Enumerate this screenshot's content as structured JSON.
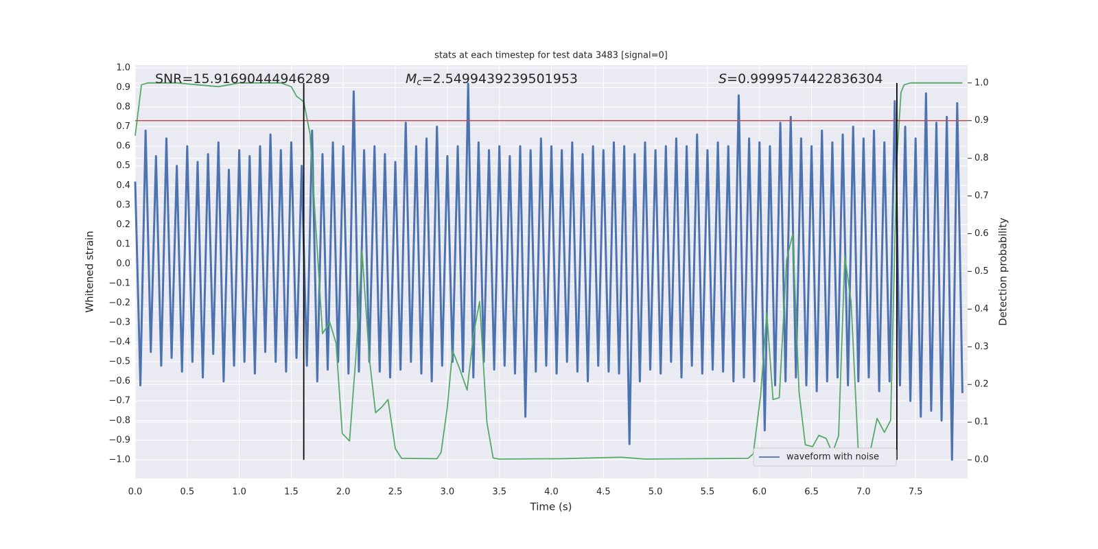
{
  "chart_data": {
    "type": "line",
    "title": "stats at each timestep for test data 3483 [signal=0]",
    "xlabel": "Time (s)",
    "ylabel": "Whitened strain",
    "y2label": "Detection probability",
    "annotations": [
      {
        "text": "SNR=15.91690444946289"
      },
      {
        "symbol": "M",
        "subscript": "c",
        "text": "=2.5499439239501953"
      },
      {
        "symbol": "S",
        "text": "=0.9999574422836304"
      }
    ],
    "xlim": [
      0,
      8.0
    ],
    "ylim": [
      -1.095,
      1.014
    ],
    "y2lim": [
      -0.049,
      1.047
    ],
    "grid": true,
    "legend": "lower right",
    "xticks": [
      {
        "value": 0,
        "label": "0.0"
      },
      0.5,
      {
        "value": 1,
        "label": "1.0"
      },
      1.5,
      {
        "value": 2,
        "label": "2.0"
      },
      2.5,
      {
        "value": 3,
        "label": "3.0"
      },
      3.5,
      {
        "value": 4,
        "label": "4.0"
      },
      4.5,
      {
        "value": 5,
        "label": "5.0"
      },
      5.5,
      {
        "value": 6,
        "label": "6.0"
      },
      6.5,
      {
        "value": 7,
        "label": "7.0"
      },
      7.5
    ],
    "yticks": [
      {
        "value": 1,
        "label": "1.0"
      },
      0.9,
      0.8,
      0.7,
      0.6,
      0.5,
      0.4,
      0.3,
      0.2,
      0.1,
      {
        "value": 0,
        "label": "0.0"
      },
      {
        "value": -0.1,
        "label": "−0.1"
      },
      {
        "value": -0.2,
        "label": "−0.2"
      },
      {
        "value": -0.3,
        "label": "−0.3"
      },
      {
        "value": -0.4,
        "label": "−0.4"
      },
      {
        "value": -0.5,
        "label": "−0.5"
      },
      {
        "value": -0.6,
        "label": "−0.6"
      },
      {
        "value": -0.7,
        "label": "−0.7"
      },
      {
        "value": -0.8,
        "label": "−0.8"
      },
      {
        "value": -0.9,
        "label": "−0.9"
      },
      {
        "value": -1,
        "label": "−1.0"
      }
    ],
    "y2ticks": [
      {
        "value": 0,
        "label": "0.0"
      },
      0.1,
      0.2,
      0.3,
      0.4,
      0.5,
      0.6,
      0.7,
      0.8,
      0.9,
      {
        "value": 1,
        "label": "1.0"
      }
    ],
    "threshold": {
      "value": 0.9,
      "axis": "y2",
      "color": "#c44e52"
    },
    "vlines": {
      "x": [
        1.62,
        7.32
      ],
      "color": "#000000"
    },
    "series": [
      {
        "name": "waveform with noise",
        "color": "#4c72b0",
        "axis": "y",
        "x": [
          0,
          0.05,
          0.1,
          0.15,
          0.2,
          0.25,
          0.3,
          0.35,
          0.4,
          0.45,
          0.5,
          0.55,
          0.6,
          0.65,
          0.7,
          0.75,
          0.8,
          0.85,
          0.9,
          0.95,
          1,
          1.05,
          1.1,
          1.15,
          1.2,
          1.25,
          1.3,
          1.35,
          1.4,
          1.45,
          1.5,
          1.55,
          1.6,
          1.65,
          1.7,
          1.75,
          1.8,
          1.85,
          1.9,
          1.95,
          2,
          2.05,
          2.1,
          2.15,
          2.2,
          2.25,
          2.3,
          2.35,
          2.4,
          2.45,
          2.5,
          2.55,
          2.6,
          2.65,
          2.7,
          2.75,
          2.8,
          2.85,
          2.9,
          2.95,
          3,
          3.05,
          3.1,
          3.15,
          3.2,
          3.25,
          3.3,
          3.35,
          3.4,
          3.45,
          3.5,
          3.55,
          3.6,
          3.65,
          3.7,
          3.75,
          3.8,
          3.85,
          3.9,
          3.95,
          4,
          4.05,
          4.1,
          4.15,
          4.2,
          4.25,
          4.3,
          4.35,
          4.4,
          4.45,
          4.5,
          4.55,
          4.6,
          4.65,
          4.7,
          4.75,
          4.8,
          4.85,
          4.9,
          4.95,
          5,
          5.05,
          5.1,
          5.15,
          5.2,
          5.25,
          5.3,
          5.35,
          5.4,
          5.45,
          5.5,
          5.55,
          5.6,
          5.65,
          5.7,
          5.75,
          5.8,
          5.85,
          5.9,
          5.95,
          6,
          6.05,
          6.1,
          6.15,
          6.2,
          6.25,
          6.3,
          6.35,
          6.4,
          6.45,
          6.5,
          6.55,
          6.6,
          6.65,
          6.7,
          6.75,
          6.8,
          6.85,
          6.9,
          6.95,
          7,
          7.05,
          7.1,
          7.15,
          7.2,
          7.25,
          7.3,
          7.35,
          7.4,
          7.45,
          7.5,
          7.55,
          7.6,
          7.65,
          7.7,
          7.75,
          7.8,
          7.85,
          7.9,
          7.95
        ],
        "values": [
          0.42,
          -0.62,
          0.68,
          -0.45,
          0.55,
          -0.52,
          0.64,
          -0.48,
          0.5,
          -0.55,
          0.6,
          -0.5,
          0.52,
          -0.58,
          0.56,
          -0.46,
          0.62,
          -0.6,
          0.48,
          -0.52,
          0.58,
          -0.5,
          0.55,
          -0.56,
          0.6,
          -0.45,
          0.66,
          -0.5,
          0.58,
          -0.55,
          0.62,
          -0.48,
          0.5,
          -0.52,
          0.68,
          -0.6,
          0.56,
          -0.54,
          0.62,
          -0.5,
          0.6,
          -0.56,
          0.88,
          -0.55,
          0.58,
          -0.5,
          0.6,
          -0.55,
          0.56,
          -0.58,
          0.52,
          -0.54,
          0.72,
          -0.5,
          0.6,
          -0.56,
          0.64,
          -0.6,
          0.7,
          -0.52,
          0.55,
          -0.5,
          0.6,
          -0.55,
          0.92,
          -0.58,
          0.62,
          -0.5,
          0.58,
          -0.54,
          0.6,
          -0.52,
          0.55,
          -0.56,
          0.6,
          -0.78,
          0.58,
          -0.55,
          0.64,
          -0.52,
          0.6,
          -0.56,
          0.58,
          -0.5,
          0.62,
          -0.55,
          0.56,
          -0.6,
          0.6,
          -0.52,
          0.58,
          -0.55,
          0.62,
          -0.56,
          0.6,
          -0.92,
          0.56,
          -0.6,
          0.62,
          -0.54,
          0.58,
          -0.56,
          0.6,
          -0.5,
          0.64,
          -0.58,
          0.6,
          -0.52,
          0.66,
          -0.56,
          0.58,
          -0.54,
          0.62,
          -0.55,
          0.6,
          -0.6,
          0.86,
          -0.58,
          0.64,
          -0.6,
          0.62,
          -0.85,
          0.6,
          -0.62,
          0.72,
          -0.6,
          0.75,
          -0.58,
          0.64,
          -0.62,
          0.6,
          -0.65,
          0.68,
          -0.6,
          0.62,
          -0.58,
          0.66,
          -0.62,
          0.7,
          -0.6,
          0.64,
          -0.58,
          0.68,
          -0.65,
          0.62,
          -0.6,
          0.83,
          -0.62,
          0.7,
          -0.7,
          0.64,
          -0.78,
          0.87,
          -0.75,
          0.72,
          -0.8,
          0.75,
          -1.0,
          0.82,
          -0.66
        ]
      },
      {
        "color": "#55a868",
        "axis": "y2",
        "x": [
          0,
          0.06,
          0.12,
          0.4,
          0.8,
          1.0,
          1.4,
          1.5,
          1.55,
          1.62,
          1.68,
          1.74,
          1.8,
          1.87,
          1.93,
          1.99,
          2.06,
          2.12,
          2.18,
          2.25,
          2.31,
          2.37,
          2.43,
          2.5,
          2.56,
          2.9,
          2.94,
          3.0,
          3.05,
          3.12,
          3.19,
          3.25,
          3.31,
          3.38,
          3.44,
          3.5,
          4.1,
          4.67,
          4.9,
          5.89,
          5.94,
          6.01,
          6.07,
          6.13,
          6.19,
          6.26,
          6.32,
          6.38,
          6.44,
          6.51,
          6.57,
          6.64,
          6.7,
          6.76,
          6.82,
          6.88,
          6.95,
          7.01,
          7.07,
          7.13,
          7.2,
          7.26,
          7.32,
          7.36,
          7.39,
          7.45,
          7.95
        ],
        "values": [
          0.86,
          0.995,
          1.0,
          1.0,
          0.99,
          1.0,
          1.0,
          0.99,
          0.965,
          0.95,
          0.865,
          0.6,
          0.335,
          0.365,
          0.31,
          0.07,
          0.05,
          0.27,
          0.555,
          0.27,
          0.125,
          0.14,
          0.16,
          0.03,
          0.004,
          0.003,
          0.02,
          0.14,
          0.29,
          0.24,
          0.185,
          0.33,
          0.42,
          0.1,
          0.005,
          0.002,
          0.003,
          0.007,
          0.002,
          0.004,
          0.016,
          0.17,
          0.39,
          0.16,
          0.165,
          0.53,
          0.6,
          0.18,
          0.04,
          0.035,
          0.065,
          0.057,
          0.018,
          0.064,
          0.54,
          0.42,
          0.018,
          0.01,
          0.03,
          0.11,
          0.073,
          0.105,
          0.8,
          0.975,
          0.995,
          1.0,
          1.0
        ]
      }
    ]
  }
}
